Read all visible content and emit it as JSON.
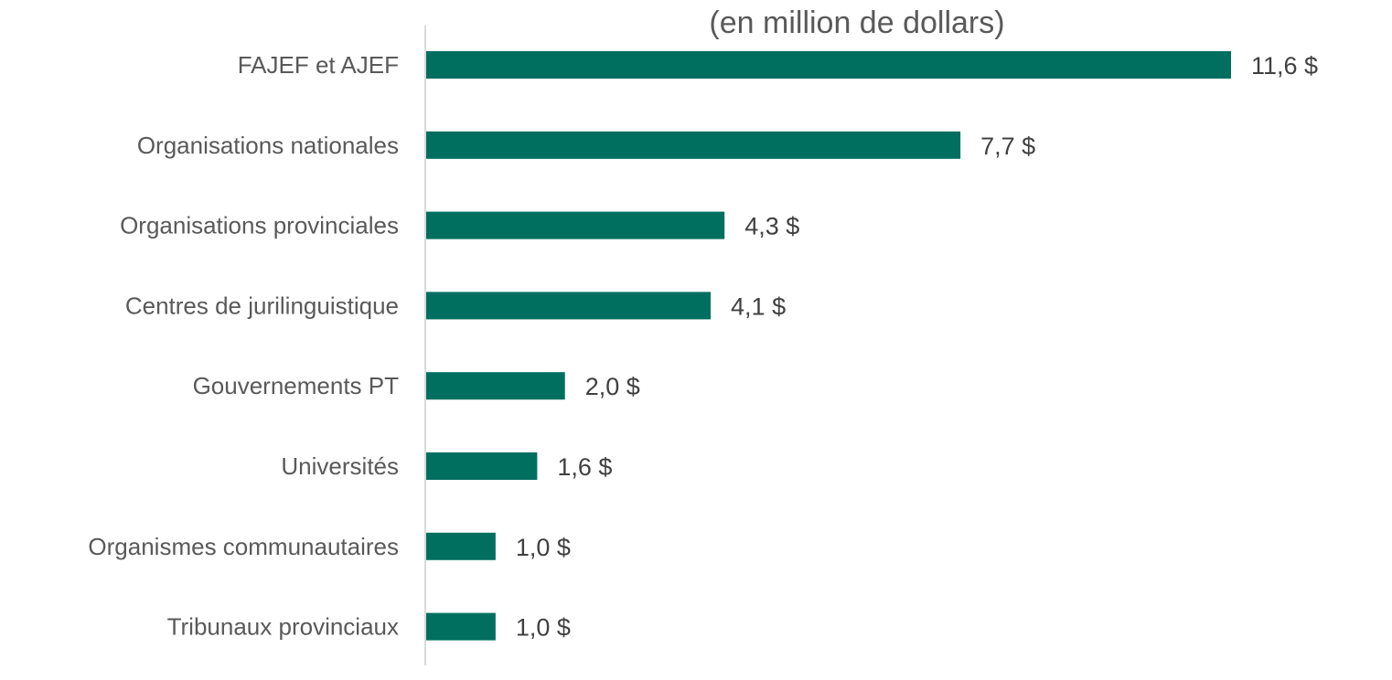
{
  "chart_data": {
    "type": "bar",
    "orientation": "horizontal",
    "title": "(en million de dollars)",
    "categories": [
      "FAJEF et AJEF",
      "Organisations nationales",
      "Organisations provinciales",
      "Centres de jurilinguistique",
      "Gouvernements PT",
      "Universités",
      "Organismes communautaires",
      "Tribunaux provinciaux"
    ],
    "values": [
      11.6,
      7.7,
      4.3,
      4.1,
      2.0,
      1.6,
      1.0,
      1.0
    ],
    "data_labels": [
      "11,6 $",
      "7,7 $",
      "4,3 $",
      "4,1 $",
      "2,0 $",
      "1,6 $",
      "1,0 $",
      "1,0 $"
    ],
    "xlabel": "",
    "ylabel": "",
    "xlim": [
      0,
      11.6
    ],
    "grid": false,
    "legend": "none",
    "colors": {
      "bar": "#006F60",
      "text": "#595959",
      "value_text": "#404040",
      "axis": "#D9D9D9"
    }
  }
}
